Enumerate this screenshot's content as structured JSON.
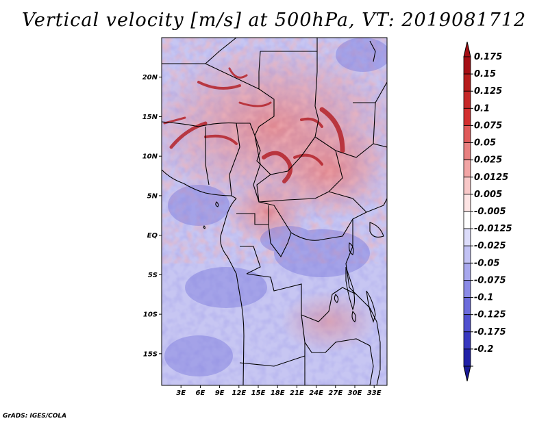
{
  "title": "Vertical velocity [m/s] at 500hPa, VT: 2019081712",
  "credit": "GrADS: IGES/COLA",
  "map": {
    "lon_range": [
      0,
      35
    ],
    "lat_range": [
      -19,
      25
    ],
    "lat_ticks": [
      {
        "value": 20,
        "label": "20N"
      },
      {
        "value": 15,
        "label": "15N"
      },
      {
        "value": 10,
        "label": "10N"
      },
      {
        "value": 5,
        "label": "5N"
      },
      {
        "value": 0,
        "label": "EQ"
      },
      {
        "value": -5,
        "label": "5S"
      },
      {
        "value": -10,
        "label": "10S"
      },
      {
        "value": -15,
        "label": "15S"
      }
    ],
    "lon_ticks": [
      {
        "value": 3,
        "label": "3E"
      },
      {
        "value": 6,
        "label": "6E"
      },
      {
        "value": 9,
        "label": "9E"
      },
      {
        "value": 12,
        "label": "12E"
      },
      {
        "value": 15,
        "label": "15E"
      },
      {
        "value": 18,
        "label": "18E"
      },
      {
        "value": 21,
        "label": "21E"
      },
      {
        "value": 24,
        "label": "24E"
      },
      {
        "value": 27,
        "label": "27E"
      },
      {
        "value": 30,
        "label": "30E"
      },
      {
        "value": 33,
        "label": "33E"
      }
    ]
  },
  "colorbar": {
    "levels": [
      {
        "label": "0.175",
        "color": "#a50f15"
      },
      {
        "label": "0.15",
        "color": "#b71c1c"
      },
      {
        "label": "0.125",
        "color": "#c62828"
      },
      {
        "label": "0.1",
        "color": "#d32f2f"
      },
      {
        "label": "0.075",
        "color": "#e05a5a"
      },
      {
        "label": "0.05",
        "color": "#e88080"
      },
      {
        "label": "0.025",
        "color": "#f2a5a5"
      },
      {
        "label": "0.0125",
        "color": "#f8c8c8"
      },
      {
        "label": "0.005",
        "color": "#fde4e4"
      },
      {
        "label": "-0.005",
        "color": "#ffffff"
      },
      {
        "label": "-0.0125",
        "color": "#dcdcfa"
      },
      {
        "label": "-0.025",
        "color": "#c2c2f4"
      },
      {
        "label": "-0.05",
        "color": "#a8a8ee"
      },
      {
        "label": "-0.075",
        "color": "#8a8ae6"
      },
      {
        "label": "-0.1",
        "color": "#6c6cdc"
      },
      {
        "label": "-0.125",
        "color": "#5050d0"
      },
      {
        "label": "-0.175",
        "color": "#3838c0"
      },
      {
        "label": "-0.2",
        "color": "#2020a8"
      }
    ],
    "top_extend_color": "#a50f15",
    "bottom_extend_color": "#1a1a96"
  },
  "colors": {
    "field_base": "#c7c6f2",
    "positive": "#e2787b",
    "strong_positive": "#b4232a",
    "negative": "#7a78dc",
    "border": "#000000"
  }
}
